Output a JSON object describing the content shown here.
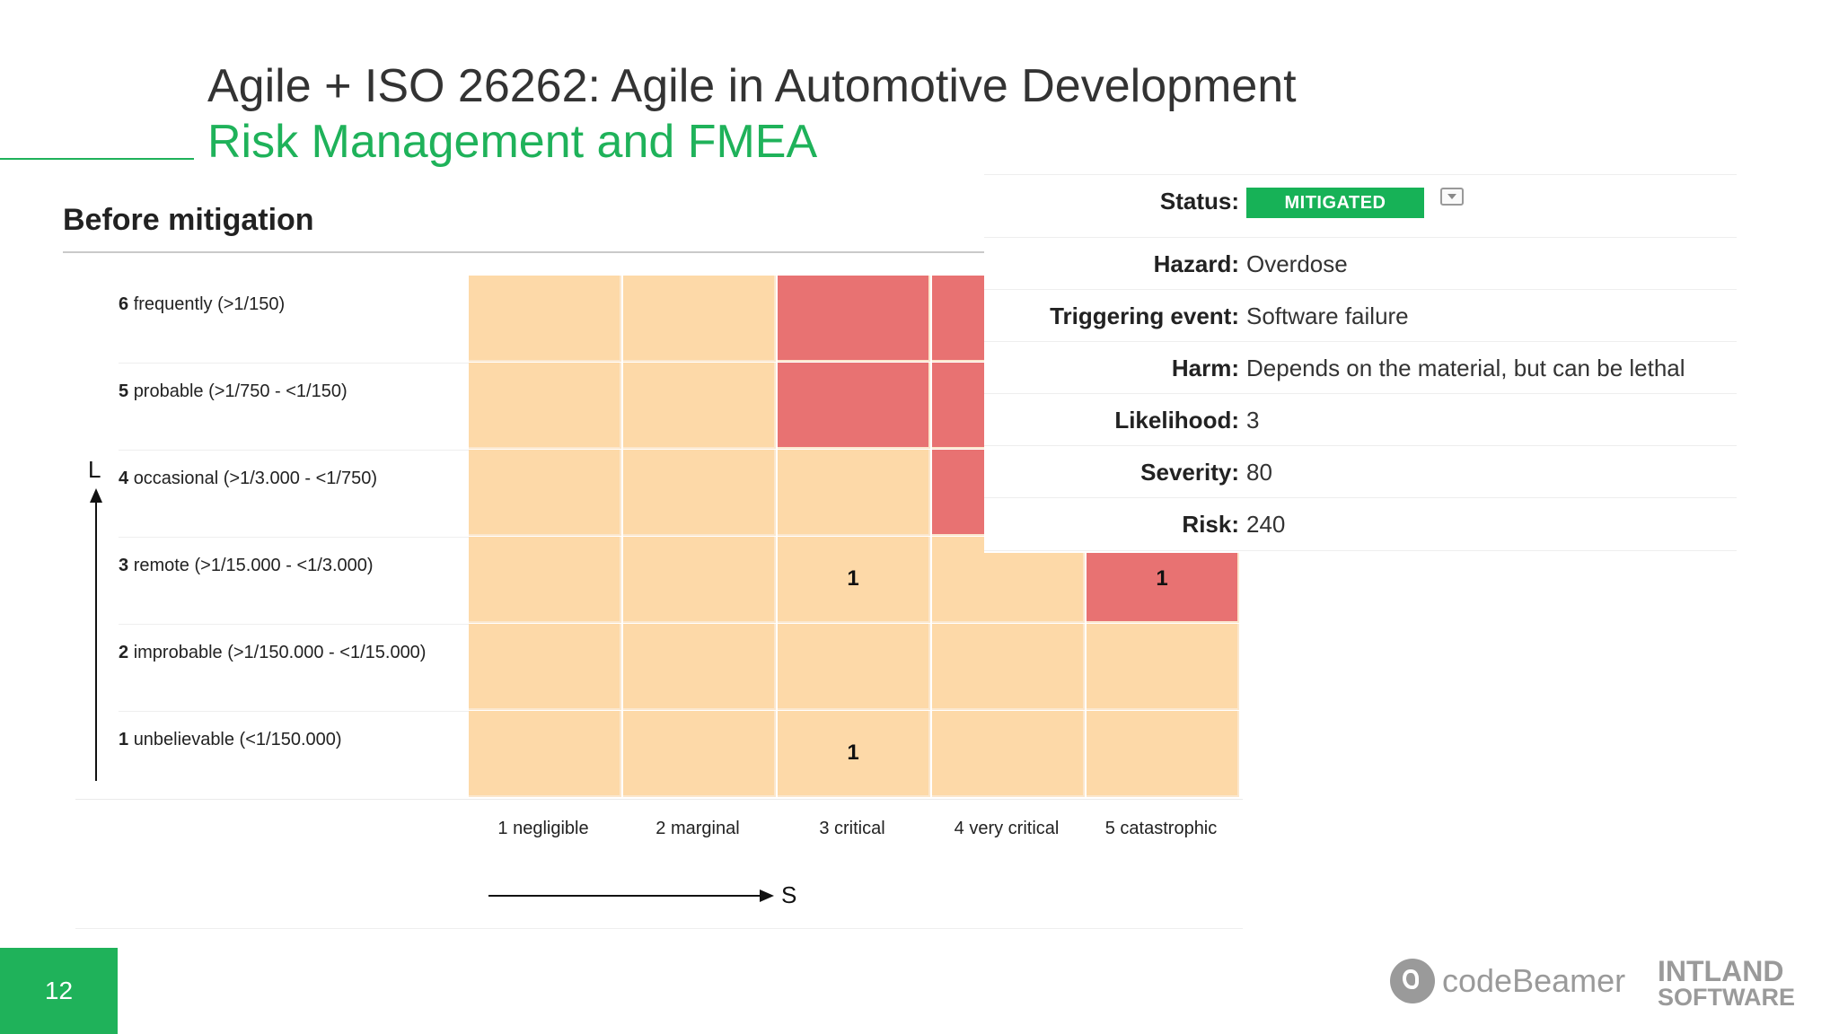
{
  "header": {
    "title": "Agile + ISO 26262: Agile in Automotive Development",
    "subtitle": "Risk Management and FMEA"
  },
  "section": {
    "title": "Before mitigation"
  },
  "colors": {
    "brand_green": "#1fb25a",
    "cell_low": "#fdd9a8",
    "cell_high": "#e87272"
  },
  "axes": {
    "likelihood_label": "L",
    "severity_label": "S"
  },
  "matrix": {
    "rows": [
      {
        "num": "6",
        "label": "frequently (>1/150)"
      },
      {
        "num": "5",
        "label": "probable (>1/750 - <1/150)"
      },
      {
        "num": "4",
        "label": "occasional (>1/3.000 - <1/750)"
      },
      {
        "num": "3",
        "label": "remote (>1/15.000 - <1/3.000)"
      },
      {
        "num": "2",
        "label": "improbable (>1/150.000 - <1/15.000)"
      },
      {
        "num": "1",
        "label": "unbelievable (<1/150.000)"
      }
    ],
    "columns": [
      {
        "num": "1",
        "label": "negligible"
      },
      {
        "num": "2",
        "label": "marginal"
      },
      {
        "num": "3",
        "label": "critical"
      },
      {
        "num": "4",
        "label": "very critical"
      },
      {
        "num": "5",
        "label": "catastrophic"
      }
    ],
    "cells": [
      [
        "low",
        "low",
        "high",
        "high",
        "high"
      ],
      [
        "low",
        "low",
        "high",
        "high",
        "high"
      ],
      [
        "low",
        "low",
        "low",
        "high",
        "high"
      ],
      [
        "low",
        "low",
        "low",
        "low",
        "high"
      ],
      [
        "low",
        "low",
        "low",
        "low",
        "low"
      ],
      [
        "low",
        "low",
        "low",
        "low",
        "low"
      ]
    ],
    "counts": [
      [
        "",
        "",
        "",
        "",
        ""
      ],
      [
        "",
        "",
        "",
        "",
        ""
      ],
      [
        "",
        "",
        "",
        "",
        ""
      ],
      [
        "",
        "",
        "1",
        "",
        "1"
      ],
      [
        "",
        "",
        "",
        "",
        ""
      ],
      [
        "",
        "",
        "1",
        "",
        ""
      ]
    ]
  },
  "details": {
    "status": {
      "label": "Status:",
      "value": "MITIGATED"
    },
    "hazard": {
      "label": "Hazard:",
      "value": "Overdose"
    },
    "triggering_event": {
      "label": "Triggering event:",
      "value": "Software failure"
    },
    "harm": {
      "label": "Harm:",
      "value": "Depends on the material, but can be lethal"
    },
    "likelihood": {
      "label": "Likelihood:",
      "value": "3"
    },
    "severity": {
      "label": "Severity:",
      "value": "80"
    },
    "risk": {
      "label": "Risk:",
      "value": "240"
    }
  },
  "footer": {
    "page_number": "12",
    "logo_text": "codeBeamer",
    "company_line1": "INTLAND",
    "company_line2": "SOFTWARE"
  }
}
